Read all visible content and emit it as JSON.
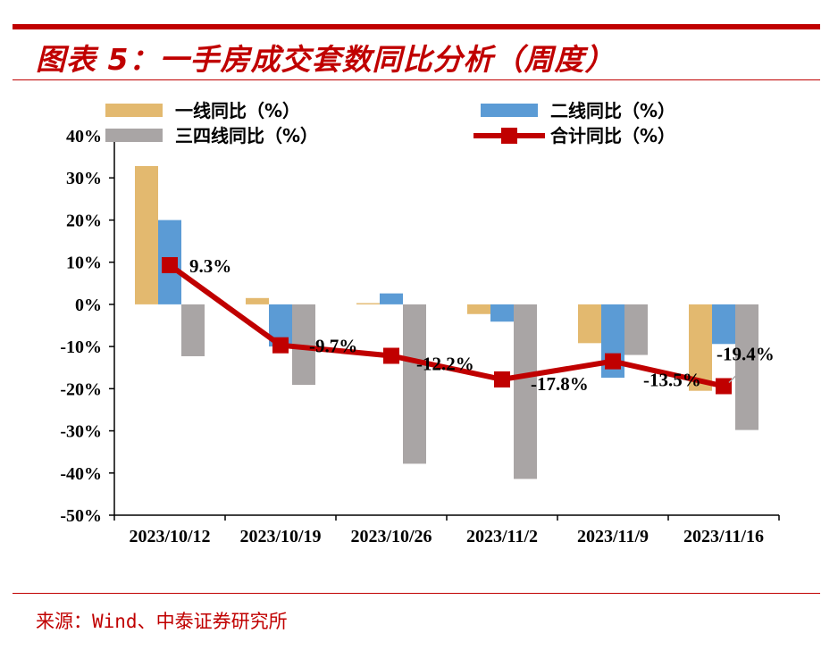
{
  "title": "图表 5：一手房成交套数同比分析（周度）",
  "source": "来源：Wind、中泰证券研究所",
  "colors": {
    "accent": "#c00000",
    "tier1": "#e3b96f",
    "tier2": "#5b9bd5",
    "tier34": "#a9a5a5",
    "total": "#c00000"
  },
  "chart_data": {
    "type": "bar",
    "categories": [
      "2023/10/12",
      "2023/10/19",
      "2023/10/26",
      "2023/11/2",
      "2023/11/9",
      "2023/11/16"
    ],
    "series": [
      {
        "name": "一线同比（%）",
        "type": "bar",
        "values": [
          32.8,
          1.5,
          0.3,
          -2.3,
          -9.2,
          -20.5
        ]
      },
      {
        "name": "二线同比（%）",
        "type": "bar",
        "values": [
          20.0,
          -10.0,
          2.6,
          -4.1,
          -17.4,
          -9.4
        ]
      },
      {
        "name": "三四线同比（%）",
        "type": "bar",
        "values": [
          -12.3,
          -19.1,
          -37.8,
          -41.4,
          -12.0,
          -29.8
        ]
      },
      {
        "name": "合计同比（%）",
        "type": "line",
        "values": [
          9.3,
          -9.7,
          -12.2,
          -17.8,
          -13.5,
          -19.4
        ]
      }
    ],
    "data_labels": [
      "9.3%",
      "-9.7%",
      "-12.2%",
      "-17.8%",
      "-13.5%",
      "-19.4%"
    ],
    "y_ticks": [
      "40%",
      "30%",
      "20%",
      "10%",
      "0%",
      "-10%",
      "-20%",
      "-30%",
      "-40%",
      "-50%"
    ],
    "ylim": [
      -50,
      40
    ],
    "grid": false,
    "legend_position": "top"
  }
}
